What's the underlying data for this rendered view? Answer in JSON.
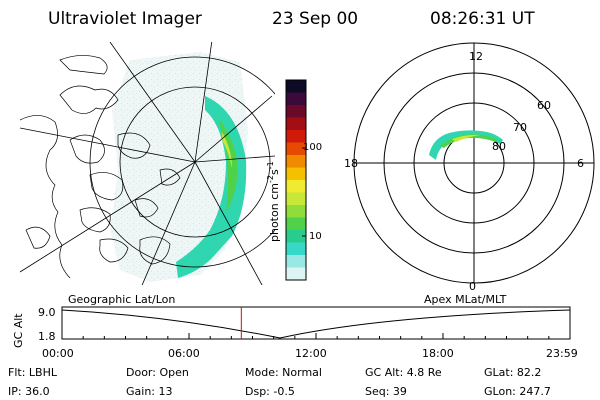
{
  "header": {
    "instrument": "Ultraviolet Imager",
    "date": "23 Sep 00",
    "time": "08:26:31 UT"
  },
  "geo_map": {
    "label": "Geographic Lat/Lon",
    "data_color": "#2fd6b0"
  },
  "colorbar": {
    "label_main": "photon cm",
    "label_sup1": "-2",
    "label_s": "s",
    "label_sup2": "-1",
    "ticks": [
      "100",
      "10"
    ],
    "colors": [
      "#0b0b26",
      "#3a0a3a",
      "#6a0a2a",
      "#a30d14",
      "#d01a0a",
      "#e64a00",
      "#f08a00",
      "#f5c000",
      "#f0ea30",
      "#c8e838",
      "#8fdc3a",
      "#4fd24a",
      "#28cc8c",
      "#38d8c8",
      "#9ae8e6",
      "#ddf4f4"
    ]
  },
  "polar": {
    "label": "Apex MLat/MLT",
    "mlt_labels": {
      "top": "12",
      "left": "18",
      "right": "6",
      "bottom": "0"
    },
    "lat_labels": [
      "60",
      "70",
      "80"
    ]
  },
  "gc_alt_panel": {
    "axis_label": "GC Alt",
    "y_max": "9.0",
    "y_min": "1.8",
    "time_ticks": [
      "00:00",
      "06:00",
      "12:00",
      "18:00",
      "23:59"
    ],
    "current_time_fraction": 0.353
  },
  "footer": {
    "rows": [
      [
        "Flt: LBHL",
        "Door: Open",
        "Mode: Normal",
        "GC Alt: 4.8 Re",
        "GLat:  82.2"
      ],
      [
        "IP: 36.0",
        "Gain: 13",
        "Dsp:   -0.5",
        "Seq: 39",
        "GLon: 247.7"
      ]
    ]
  }
}
